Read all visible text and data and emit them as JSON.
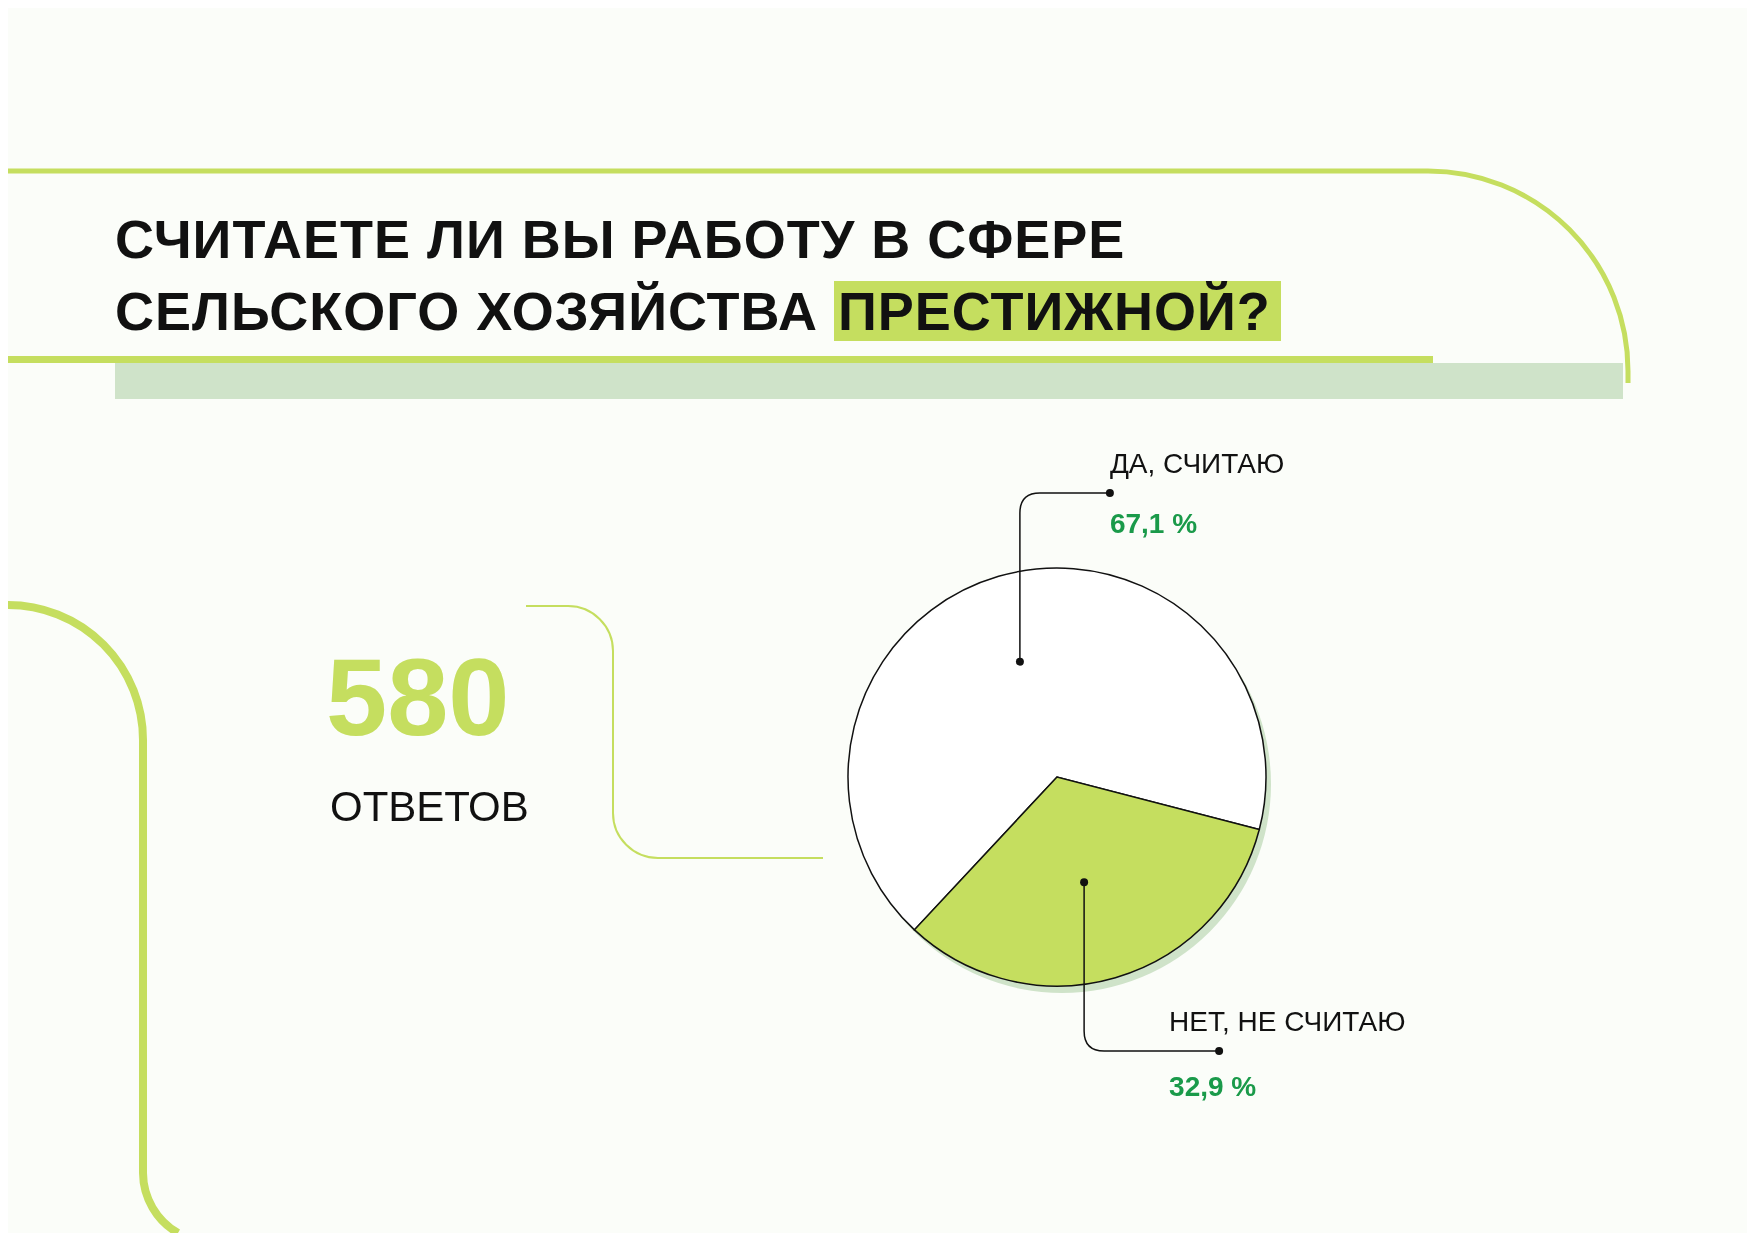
{
  "chart_data": {
    "type": "pie",
    "title": "СЧИТАЕТЕ ЛИ ВЫ РАБОТУ В СФЕРЕ СЕЛЬСКОГО ХОЗЯЙСТВА ПРЕСТИЖНОЙ?",
    "categories": [
      "ДА, СЧИТАЮ",
      "НЕТ, НЕ СЧИТАЮ"
    ],
    "values": [
      67.1,
      32.9
    ],
    "value_labels": [
      "67,1 %",
      "32,9  %"
    ],
    "colors": [
      "#ffffff",
      "#c5de5f"
    ],
    "annotations": [
      "580",
      "ОТВЕТОВ"
    ]
  }
}
